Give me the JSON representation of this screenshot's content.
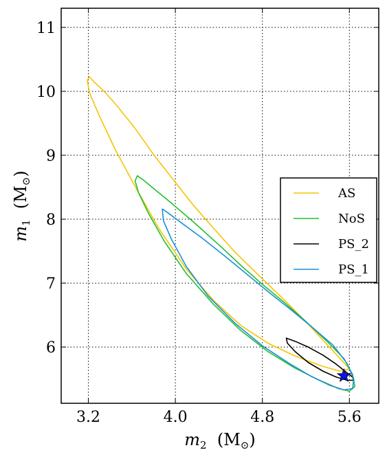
{
  "chart_data": {
    "type": "line",
    "title": "",
    "xlabel": {
      "var": "m",
      "sub": "2",
      "unit_open": "  (M",
      "unit_sub": "⊙",
      "unit_close": ")"
    },
    "ylabel": {
      "var": "m",
      "sub": "1",
      "unit_open": "  (M",
      "unit_sub": "⊙",
      "unit_close": ")"
    },
    "xlim": [
      2.95,
      5.87
    ],
    "ylim": [
      5.12,
      11.3
    ],
    "x_ticks": [
      {
        "value": 3.2,
        "label": "3.2"
      },
      {
        "value": 4.0,
        "label": "4.0"
      },
      {
        "value": 4.8,
        "label": "4.8"
      },
      {
        "value": 5.6,
        "label": "5.6"
      }
    ],
    "y_ticks": [
      {
        "value": 6,
        "label": "6"
      },
      {
        "value": 7,
        "label": "7"
      },
      {
        "value": 8,
        "label": "8"
      },
      {
        "value": 9,
        "label": "9"
      },
      {
        "value": 10,
        "label": "10"
      },
      {
        "value": 11,
        "label": "11"
      }
    ],
    "grid": true,
    "legend_position": "right",
    "series": [
      {
        "name": "AS",
        "color": "#f5c400",
        "points": [
          [
            3.21,
            10.23
          ],
          [
            3.25,
            10.15
          ],
          [
            3.34,
            10.01
          ],
          [
            3.46,
            9.78
          ],
          [
            3.63,
            9.42
          ],
          [
            3.8,
            9.01
          ],
          [
            3.97,
            8.64
          ],
          [
            4.15,
            8.25
          ],
          [
            4.35,
            7.86
          ],
          [
            4.55,
            7.48
          ],
          [
            4.78,
            7.1
          ],
          [
            5.0,
            6.74
          ],
          [
            5.22,
            6.36
          ],
          [
            5.4,
            6.03
          ],
          [
            5.52,
            5.81
          ],
          [
            5.6,
            5.66
          ],
          [
            5.52,
            5.62
          ],
          [
            5.35,
            5.7
          ],
          [
            5.1,
            5.86
          ],
          [
            4.85,
            6.06
          ],
          [
            4.6,
            6.34
          ],
          [
            4.35,
            6.73
          ],
          [
            4.1,
            7.22
          ],
          [
            3.85,
            7.85
          ],
          [
            3.65,
            8.45
          ],
          [
            3.45,
            9.08
          ],
          [
            3.3,
            9.62
          ],
          [
            3.21,
            9.98
          ],
          [
            3.19,
            10.17
          ],
          [
            3.21,
            10.23
          ]
        ]
      },
      {
        "name": "NoS",
        "color": "#1fbf2f",
        "points": [
          [
            3.65,
            8.68
          ],
          [
            3.7,
            8.62
          ],
          [
            3.8,
            8.48
          ],
          [
            3.95,
            8.27
          ],
          [
            4.15,
            7.98
          ],
          [
            4.4,
            7.6
          ],
          [
            4.6,
            7.28
          ],
          [
            4.8,
            6.98
          ],
          [
            5.0,
            6.7
          ],
          [
            5.2,
            6.4
          ],
          [
            5.4,
            6.08
          ],
          [
            5.55,
            5.82
          ],
          [
            5.63,
            5.57
          ],
          [
            5.65,
            5.38
          ],
          [
            5.6,
            5.31
          ],
          [
            5.5,
            5.35
          ],
          [
            5.3,
            5.5
          ],
          [
            5.1,
            5.67
          ],
          [
            4.85,
            5.93
          ],
          [
            4.6,
            6.26
          ],
          [
            4.35,
            6.67
          ],
          [
            4.1,
            7.15
          ],
          [
            3.9,
            7.65
          ],
          [
            3.75,
            8.1
          ],
          [
            3.66,
            8.42
          ],
          [
            3.63,
            8.6
          ],
          [
            3.65,
            8.68
          ]
        ]
      },
      {
        "name": "PS_2",
        "color": "#000000",
        "points": [
          [
            5.02,
            6.14
          ],
          [
            5.1,
            6.09
          ],
          [
            5.22,
            6.0
          ],
          [
            5.36,
            5.87
          ],
          [
            5.48,
            5.73
          ],
          [
            5.56,
            5.62
          ],
          [
            5.63,
            5.53
          ],
          [
            5.64,
            5.48
          ],
          [
            5.58,
            5.48
          ],
          [
            5.48,
            5.53
          ],
          [
            5.36,
            5.62
          ],
          [
            5.22,
            5.76
          ],
          [
            5.1,
            5.93
          ],
          [
            5.03,
            6.06
          ],
          [
            5.02,
            6.14
          ]
        ]
      },
      {
        "name": "PS_1",
        "color": "#1a8fd8",
        "points": [
          [
            3.88,
            8.16
          ],
          [
            3.93,
            8.1
          ],
          [
            4.05,
            7.95
          ],
          [
            4.25,
            7.7
          ],
          [
            4.45,
            7.43
          ],
          [
            4.65,
            7.15
          ],
          [
            4.85,
            6.87
          ],
          [
            5.05,
            6.6
          ],
          [
            5.25,
            6.32
          ],
          [
            5.45,
            6.03
          ],
          [
            5.58,
            5.74
          ],
          [
            5.64,
            5.5
          ],
          [
            5.63,
            5.35
          ],
          [
            5.55,
            5.33
          ],
          [
            5.42,
            5.4
          ],
          [
            5.25,
            5.54
          ],
          [
            5.05,
            5.74
          ],
          [
            4.8,
            6.02
          ],
          [
            4.55,
            6.37
          ],
          [
            4.3,
            6.8
          ],
          [
            4.1,
            7.26
          ],
          [
            3.96,
            7.7
          ],
          [
            3.89,
            7.98
          ],
          [
            3.88,
            8.16
          ]
        ]
      }
    ],
    "markers": [
      {
        "type": "star",
        "x": 5.55,
        "y": 5.55,
        "color": "#0a14e6"
      }
    ]
  }
}
